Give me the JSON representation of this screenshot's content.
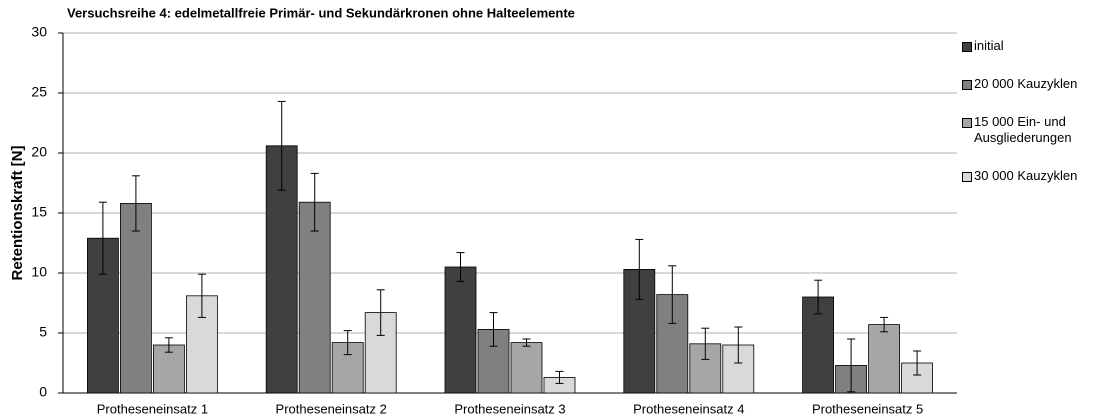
{
  "chart_data": {
    "type": "bar",
    "title": "Versuchsreihe 4: edelmetallfreie Primär- und Sekundärkronen ohne Halteelemente",
    "ylabel": "Retentionskraft [N]",
    "categories": [
      "Protheseneinsatz 1",
      "Protheseneinsatz 2",
      "Protheseneinsatz 3",
      "Protheseneinsatz 4",
      "Protheseneinsatz 5"
    ],
    "series": [
      {
        "name": "initial",
        "color": "#404040",
        "values": [
          12.9,
          20.6,
          10.5,
          10.3,
          8.0
        ],
        "errors": [
          3.0,
          3.7,
          1.2,
          2.5,
          1.4
        ]
      },
      {
        "name": "20 000 Kauzyklen",
        "color": "#808080",
        "values": [
          15.8,
          15.9,
          5.3,
          8.2,
          2.3
        ],
        "errors": [
          2.3,
          2.4,
          1.4,
          2.4,
          2.2
        ]
      },
      {
        "name": "15 000 Ein- und Ausgliederungen",
        "color": "#a6a6a6",
        "values": [
          4.0,
          4.2,
          4.2,
          4.1,
          5.7
        ],
        "errors": [
          0.6,
          1.0,
          0.3,
          1.3,
          0.6
        ]
      },
      {
        "name": "30 000 Kauzyklen",
        "color": "#d9d9d9",
        "values": [
          8.1,
          6.7,
          1.3,
          4.0,
          2.5
        ],
        "errors": [
          1.8,
          1.9,
          0.5,
          1.5,
          1.0
        ]
      }
    ],
    "ylim": [
      0,
      30
    ],
    "yticks": [
      0,
      5,
      10,
      15,
      20,
      25,
      30
    ],
    "grid": true,
    "legend": "right"
  }
}
